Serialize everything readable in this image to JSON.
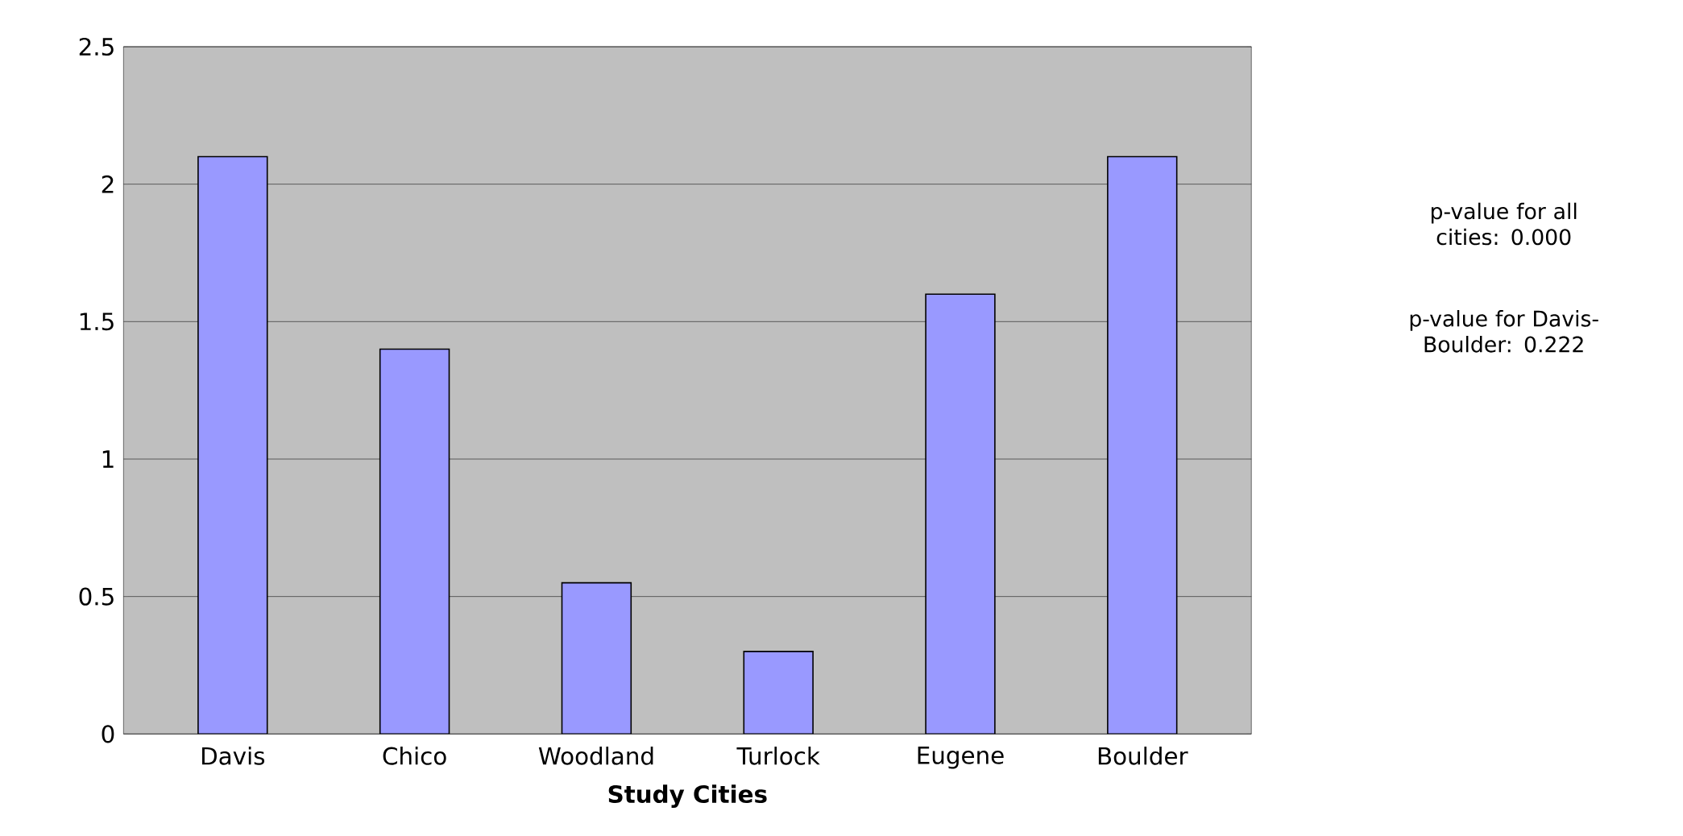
{
  "chart_data": {
    "type": "bar",
    "xlabel": "**Study Cities**",
    "categories": [
      "Davis",
      "Chico",
      "Woodland",
      "Turlock",
      "Eugene",
      "Boulder"
    ],
    "values": [
      2.1,
      1.4,
      0.55,
      0.3,
      1.6,
      2.1
    ],
    "color": "#9999ff",
    "ylim": [
      0,
      2.5
    ],
    "yticks": [
      0,
      0.5,
      1,
      1.5,
      2,
      2.5
    ],
    "grid": "y",
    "annotations": [
      "p-value for all cities: 0.000",
      "p-value for Davis-Boulder: 0.222"
    ]
  }
}
